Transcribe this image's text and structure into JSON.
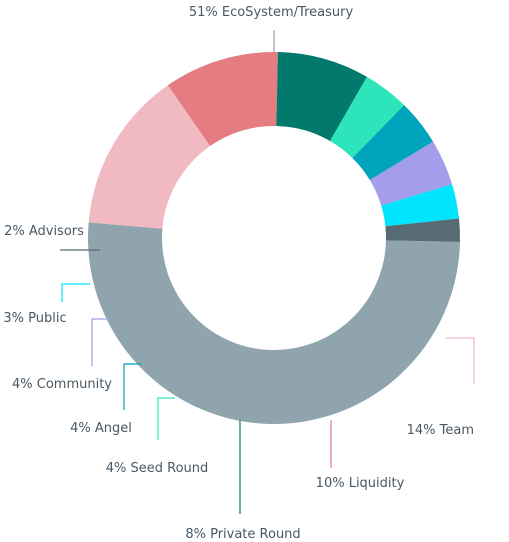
{
  "chart_data": {
    "type": "donut",
    "title": "",
    "slices": [
      {
        "label": "51% EcoSystem/Treasury",
        "name": "EcoSystem/Treasury",
        "value": 51,
        "color": "#90a4ad"
      },
      {
        "label": "14% Team",
        "name": "Team",
        "value": 14,
        "color": "#f1b9c2"
      },
      {
        "label": "10% Liquidity",
        "name": "Liquidity",
        "value": 10,
        "color": "#e47c82"
      },
      {
        "label": "8% Private Round",
        "name": "Private Round",
        "value": 8,
        "color": "#017a6d"
      },
      {
        "label": "4% Seed Round",
        "name": "Seed Round",
        "value": 4,
        "color": "#2ee5bb"
      },
      {
        "label": "4% Angel",
        "name": "Angel",
        "value": 4,
        "color": "#00a3bc"
      },
      {
        "label": "4% Community",
        "name": "Community",
        "value": 4,
        "color": "#a49de9"
      },
      {
        "label": "3% Public",
        "name": "Public",
        "value": 3,
        "color": "#00e5fd"
      },
      {
        "label": "2% Advisors",
        "name": "Advisors",
        "value": 2,
        "color": "#566b74"
      }
    ]
  }
}
